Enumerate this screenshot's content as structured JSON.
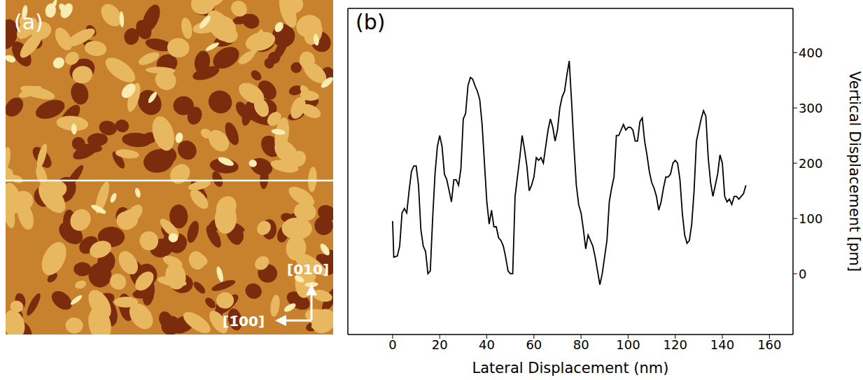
{
  "chart_data": [
    {
      "type": "image",
      "title": "(a)",
      "annotations": [
        "[010]",
        "[1̄00]"
      ]
    },
    {
      "type": "line",
      "title": "(b)",
      "x_label": "Lateral Displacement (nm)",
      "y_label": "Vertical Displacement [pm]",
      "xlim": [
        -19,
        170
      ],
      "ylim": [
        -110,
        480
      ],
      "xticks": [
        0,
        20,
        40,
        60,
        80,
        100,
        120,
        140,
        160
      ],
      "yticks": [
        0,
        100,
        200,
        300,
        400
      ],
      "color": "#000000",
      "x": [
        0,
        0.5,
        2,
        3,
        4,
        5,
        6,
        7,
        8,
        9,
        10,
        11,
        12,
        13,
        14,
        15,
        16,
        17,
        18,
        19,
        20,
        21,
        22,
        23,
        24,
        25,
        26,
        27,
        28,
        29,
        30,
        31,
        32,
        33,
        34,
        35,
        36,
        37,
        38,
        39,
        40,
        41,
        42,
        43,
        44,
        45,
        46,
        47,
        48,
        49,
        50,
        51,
        52,
        53,
        54,
        55,
        56,
        57,
        58,
        59,
        60,
        61,
        62,
        63,
        64,
        65,
        66,
        67,
        68,
        69,
        70,
        71,
        72,
        73,
        74,
        75,
        76,
        77,
        78,
        79,
        80,
        81,
        82,
        83,
        84,
        85,
        86,
        87,
        88,
        89,
        90,
        91,
        92,
        93,
        94,
        95,
        96,
        97,
        98,
        99,
        100,
        101,
        102,
        103,
        104,
        105,
        106,
        107,
        108,
        109,
        110,
        111,
        112,
        113,
        114,
        115,
        116,
        117,
        118,
        119,
        120,
        121,
        122,
        123,
        124,
        125,
        126,
        127,
        128,
        129,
        130,
        131,
        132,
        133,
        134,
        135,
        136,
        137,
        138,
        139,
        140,
        141,
        142,
        143,
        144,
        145,
        146,
        147,
        148,
        149,
        150
      ],
      "values": [
        95,
        30,
        32,
        50,
        110,
        118,
        110,
        150,
        185,
        195,
        195,
        160,
        80,
        50,
        40,
        0,
        5,
        100,
        180,
        230,
        250,
        230,
        180,
        170,
        150,
        130,
        170,
        170,
        160,
        190,
        280,
        290,
        340,
        355,
        352,
        340,
        330,
        315,
        270,
        200,
        130,
        90,
        115,
        85,
        85,
        65,
        60,
        50,
        30,
        5,
        0,
        0,
        140,
        175,
        210,
        250,
        225,
        195,
        150,
        160,
        175,
        210,
        205,
        210,
        200,
        230,
        260,
        280,
        265,
        240,
        260,
        300,
        320,
        330,
        360,
        385,
        310,
        230,
        160,
        125,
        110,
        80,
        45,
        70,
        60,
        50,
        30,
        5,
        -20,
        0,
        30,
        60,
        130,
        155,
        175,
        250,
        250,
        260,
        270,
        260,
        265,
        265,
        260,
        240,
        240,
        275,
        282,
        240,
        215,
        185,
        165,
        155,
        140,
        115,
        130,
        155,
        175,
        175,
        180,
        200,
        205,
        200,
        170,
        110,
        70,
        55,
        60,
        90,
        150,
        240,
        260,
        280,
        295,
        285,
        210,
        165,
        140,
        160,
        180,
        215,
        200,
        140,
        130,
        135,
        125,
        140,
        140,
        135,
        140,
        145,
        160
      ]
    }
  ]
}
